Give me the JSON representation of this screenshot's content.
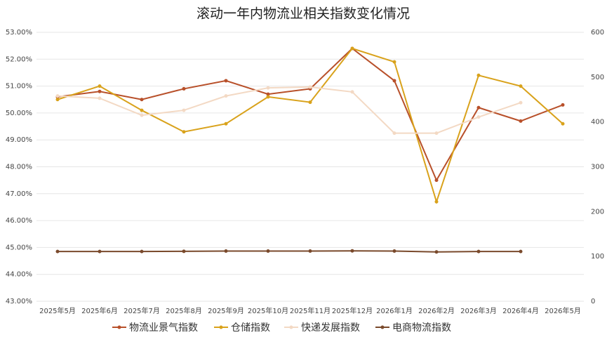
{
  "chart_data": {
    "type": "line",
    "title": "滚动一年内物流业相关指数变化情况",
    "categories": [
      "2025年5月",
      "2025年6月",
      "2025年7月",
      "2025年8月",
      "2025年9月",
      "2025年10月",
      "2025年11月",
      "2025年12月",
      "2026年1月",
      "2026年2月",
      "2026年3月",
      "2026年4月",
      "2026年5月"
    ],
    "ylim": [
      43,
      53
    ],
    "yticks": [
      {
        "value": 43,
        "label": "43.00%"
      },
      {
        "value": 44,
        "label": "44.00%"
      },
      {
        "value": 45,
        "label": "45.00%"
      },
      {
        "value": 46,
        "label": "46.00%"
      },
      {
        "value": 47,
        "label": "47.00%"
      },
      {
        "value": 48,
        "label": "48.00%"
      },
      {
        "value": 49,
        "label": "49.00%"
      },
      {
        "value": 50,
        "label": "50.00%"
      },
      {
        "value": 51,
        "label": "51.00%"
      },
      {
        "value": 52,
        "label": "52.00%"
      },
      {
        "value": 53,
        "label": "53.00%"
      }
    ],
    "y2lim": [
      0,
      600
    ],
    "y2ticks": [
      0,
      100,
      200,
      300,
      400,
      500,
      600
    ],
    "grid": true,
    "series": [
      {
        "name": "物流业景气指数",
        "color": "#b8502a",
        "values": [
          50.6,
          50.8,
          50.5,
          50.9,
          51.2,
          50.7,
          50.9,
          52.4,
          51.2,
          47.5,
          50.2,
          49.7,
          50.3
        ]
      },
      {
        "name": "仓储指数",
        "color": "#d9a21b",
        "values": [
          50.5,
          51.0,
          50.1,
          49.3,
          49.6,
          50.6,
          50.4,
          52.4,
          51.9,
          46.7,
          51.4,
          51.0,
          49.6
        ]
      },
      {
        "name": "快递发展指数",
        "color": "#f3d9c4",
        "axis": "y2",
        "values": [
          458,
          453,
          415,
          426,
          458,
          476,
          478,
          467,
          375,
          375,
          411,
          443,
          null
        ]
      },
      {
        "name": "电商物流指数",
        "color": "#7a4a2c",
        "axis": "y2",
        "values": [
          111,
          111,
          111,
          111.5,
          112,
          112,
          112,
          112.5,
          112,
          110,
          111,
          111,
          null
        ]
      }
    ]
  }
}
